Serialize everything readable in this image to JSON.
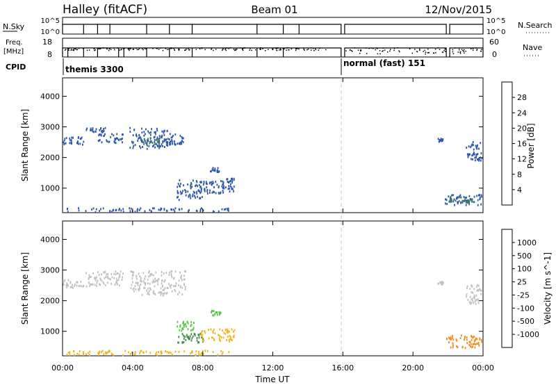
{
  "header": {
    "title": "Halley (fitACF)",
    "beam": "Beam 01",
    "date": "12/Nov/2015"
  },
  "panels": {
    "nsky_label": "N.Sky",
    "nsky_tick_top": "10^5",
    "nsky_tick_bottom": "10^0",
    "nsearch_label": "N.Search",
    "nsearch_tick_top": "10^5",
    "nsearch_tick_bottom": "10^0",
    "freq_label": "Freq.",
    "freq_unit": "[MHz]",
    "freq_tick_top": "18",
    "freq_tick_bottom": "8",
    "nave_label": "Nave",
    "nave_tick_top": "60",
    "nave_tick_bottom": "0",
    "cpid_label": "CPID",
    "cpid_1": "themis 3300",
    "cpid_2": "normal (fast) 151"
  },
  "chart_data": [
    {
      "type": "scatter",
      "ylabel": "Slant Range [km]",
      "yticks": [
        "1000",
        "2000",
        "3000",
        "4000"
      ],
      "ylim": [
        200,
        4600
      ],
      "xlim": [
        0,
        24
      ],
      "xticks": [
        "00:00",
        "04:00",
        "08:00",
        "12:00",
        "16:00",
        "20:00",
        "00:00"
      ],
      "colorbar_label": "Power [dB]",
      "colorbar_ticks": [
        "4",
        "8",
        "12",
        "16",
        "20",
        "24",
        "28"
      ],
      "colors": [
        "#1616e0",
        "#2c56a8",
        "#3a7a72",
        "#44a040",
        "#e8c81a",
        "#f08c1a",
        "#e0401a",
        "#e01616"
      ],
      "clusters": [
        {
          "x": [
            0.0,
            1.2
          ],
          "y": [
            2450,
            2700
          ],
          "color": "#2c56a8"
        },
        {
          "x": [
            1.3,
            2.5
          ],
          "y": [
            2850,
            3000
          ],
          "color": "#2c56a8"
        },
        {
          "x": [
            2.0,
            3.5
          ],
          "y": [
            2500,
            2800
          ],
          "color": "#2c56a8"
        },
        {
          "x": [
            3.8,
            6.0
          ],
          "y": [
            2300,
            3000
          ],
          "color": "#2c56a8"
        },
        {
          "x": [
            4.5,
            5.5
          ],
          "y": [
            2400,
            2700
          ],
          "color": "#3a7a72"
        },
        {
          "x": [
            6.0,
            7.0
          ],
          "y": [
            2450,
            2800
          ],
          "color": "#2c56a8"
        },
        {
          "x": [
            6.5,
            8.0
          ],
          "y": [
            650,
            1300
          ],
          "color": "#2c56a8"
        },
        {
          "x": [
            7.6,
            9.2
          ],
          "y": [
            850,
            1250
          ],
          "color": "#2c56a8"
        },
        {
          "x": [
            8.4,
            9.0
          ],
          "y": [
            1550,
            1700
          ],
          "color": "#2c56a8"
        },
        {
          "x": [
            9.0,
            9.8
          ],
          "y": [
            900,
            1350
          ],
          "color": "#2c56a8"
        },
        {
          "x": [
            0.2,
            9.5
          ],
          "y": [
            250,
            380
          ],
          "color": "#2c56a8"
        },
        {
          "x": [
            21.8,
            23.9
          ],
          "y": [
            480,
            820
          ],
          "color": "#2c56a8"
        },
        {
          "x": [
            22.0,
            23.8
          ],
          "y": [
            550,
            750
          ],
          "color": "#3a7a72"
        },
        {
          "x": [
            21.4,
            21.7
          ],
          "y": [
            2550,
            2650
          ],
          "color": "#2c56a8"
        },
        {
          "x": [
            23.0,
            23.9
          ],
          "y": [
            1900,
            2550
          ],
          "color": "#2c56a8"
        }
      ]
    },
    {
      "type": "scatter",
      "ylabel": "Slant Range [km]",
      "yticks": [
        "1000",
        "2000",
        "3000",
        "4000"
      ],
      "ylim": [
        200,
        4600
      ],
      "xlim": [
        0,
        24
      ],
      "xticks": [
        "00:00",
        "04:00",
        "08:00",
        "12:00",
        "16:00",
        "20:00",
        "00:00"
      ],
      "xlabel": "Time UT",
      "colorbar_label": "Velocity [m s^-1]",
      "colorbar_ticks": [
        "1000",
        "500",
        "100",
        "25",
        "-25",
        "-100",
        "-500",
        "-1000"
      ],
      "colors": [
        "#1e32c8",
        "#2c56a8",
        "#3a8a4a",
        "#50c83c",
        "#c0c0c0",
        "#f0b418",
        "#f08c1a",
        "#e0501a",
        "#e01616"
      ],
      "clusters": [
        {
          "x": [
            0.0,
            1.2
          ],
          "y": [
            2450,
            2700
          ],
          "color": "#c0c0c0"
        },
        {
          "x": [
            1.3,
            3.5
          ],
          "y": [
            2500,
            3000
          ],
          "color": "#c0c0c0"
        },
        {
          "x": [
            3.8,
            7.0
          ],
          "y": [
            2200,
            3000
          ],
          "color": "#c0c0c0"
        },
        {
          "x": [
            6.5,
            7.5
          ],
          "y": [
            1050,
            1350
          ],
          "color": "#50c83c"
        },
        {
          "x": [
            6.5,
            8.0
          ],
          "y": [
            650,
            950
          ],
          "color": "#3a8a4a"
        },
        {
          "x": [
            7.8,
            9.8
          ],
          "y": [
            700,
            1100
          ],
          "color": "#f0b418"
        },
        {
          "x": [
            8.4,
            9.0
          ],
          "y": [
            1550,
            1700
          ],
          "color": "#50c83c"
        },
        {
          "x": [
            0.2,
            9.5
          ],
          "y": [
            250,
            400
          ],
          "color": "#f0b418"
        },
        {
          "x": [
            21.8,
            23.9
          ],
          "y": [
            480,
            900
          ],
          "color": "#f08c1a"
        },
        {
          "x": [
            21.4,
            21.7
          ],
          "y": [
            2550,
            2650
          ],
          "color": "#c0c0c0"
        },
        {
          "x": [
            23.0,
            23.9
          ],
          "y": [
            1900,
            2550
          ],
          "color": "#c0c0c0"
        }
      ]
    }
  ]
}
